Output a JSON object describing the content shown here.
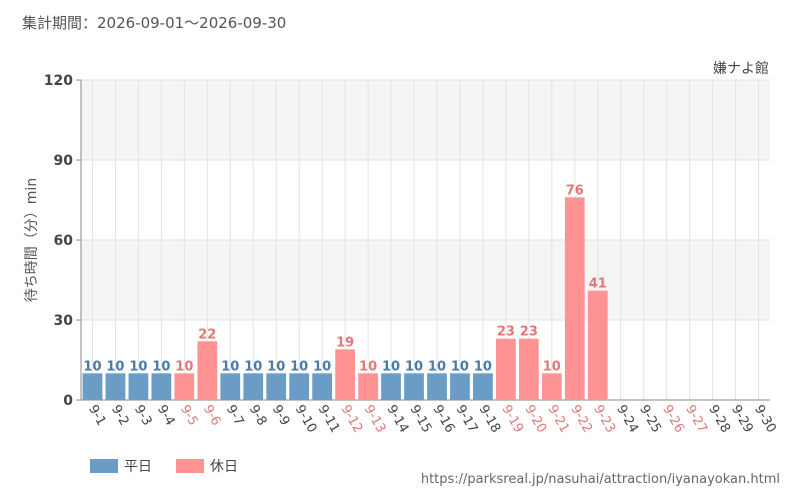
{
  "header": {
    "period_text": "集計期間：2026-09-01〜2026-09-30"
  },
  "footer": {
    "source_url": "https://parksreal.jp/nasuhai/attraction/iyanayokan.html"
  },
  "colors": {
    "weekday": "#6a9cc6",
    "holiday": "#ff9393",
    "weekday_label": "#4a7aa5",
    "holiday_label": "#e07878",
    "axis_text": "#444444"
  },
  "chart_data": {
    "type": "bar",
    "title": "嫌ナよ館",
    "xlabel": "",
    "ylabel": "待ち時間（分）min",
    "ylim": [
      0,
      120
    ],
    "yticks": [
      0,
      30,
      60,
      90,
      120
    ],
    "grid": true,
    "legend_position": "bottom-left",
    "legend": [
      {
        "key": "weekday",
        "label": "平日"
      },
      {
        "key": "holiday",
        "label": "休日"
      }
    ],
    "categories": [
      "9-1",
      "9-2",
      "9-3",
      "9-4",
      "9-5",
      "9-6",
      "9-7",
      "9-8",
      "9-9",
      "9-10",
      "9-11",
      "9-12",
      "9-13",
      "9-14",
      "9-15",
      "9-16",
      "9-17",
      "9-18",
      "9-19",
      "9-20",
      "9-21",
      "9-22",
      "9-23",
      "9-24",
      "9-25",
      "9-26",
      "9-27",
      "9-28",
      "9-29",
      "9-30"
    ],
    "values": [
      10,
      10,
      10,
      10,
      10,
      22,
      10,
      10,
      10,
      10,
      10,
      19,
      10,
      10,
      10,
      10,
      10,
      10,
      23,
      23,
      10,
      76,
      41,
      null,
      null,
      null,
      null,
      null,
      null,
      null
    ],
    "holiday": [
      false,
      false,
      false,
      false,
      true,
      true,
      false,
      false,
      false,
      false,
      false,
      true,
      true,
      false,
      false,
      false,
      false,
      false,
      true,
      true,
      true,
      true,
      true,
      false,
      false,
      true,
      true,
      false,
      false,
      false
    ]
  }
}
